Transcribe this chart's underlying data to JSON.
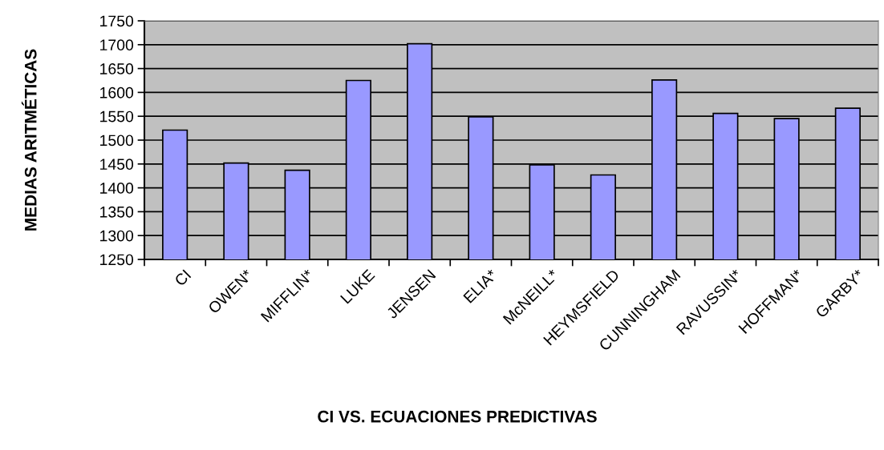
{
  "chart_data": {
    "type": "bar",
    "categories": [
      "CI",
      "OWEN*",
      "MIFFLIN*",
      "LUKE",
      "JENSEN",
      "ELIA*",
      "McNEILL*",
      "HEYMSFIELD",
      "CUNNINGHAM",
      "RAVUSSIN*",
      "HOFFMAN*",
      "GARBY*"
    ],
    "values": [
      1521,
      1452,
      1437,
      1625,
      1702,
      1549,
      1448,
      1427,
      1626,
      1556,
      1545,
      1567
    ],
    "color": "#9999ff",
    "xlabel": "CI VS. ECUACIONES PREDICTIVAS",
    "ylabel": "MEDIAS ARITMÉTICAS",
    "ylim": [
      1250,
      1750
    ],
    "yticks": [
      1250,
      1300,
      1350,
      1400,
      1450,
      1500,
      1550,
      1600,
      1650,
      1700,
      1750
    ],
    "grid": "y",
    "legend": false
  }
}
